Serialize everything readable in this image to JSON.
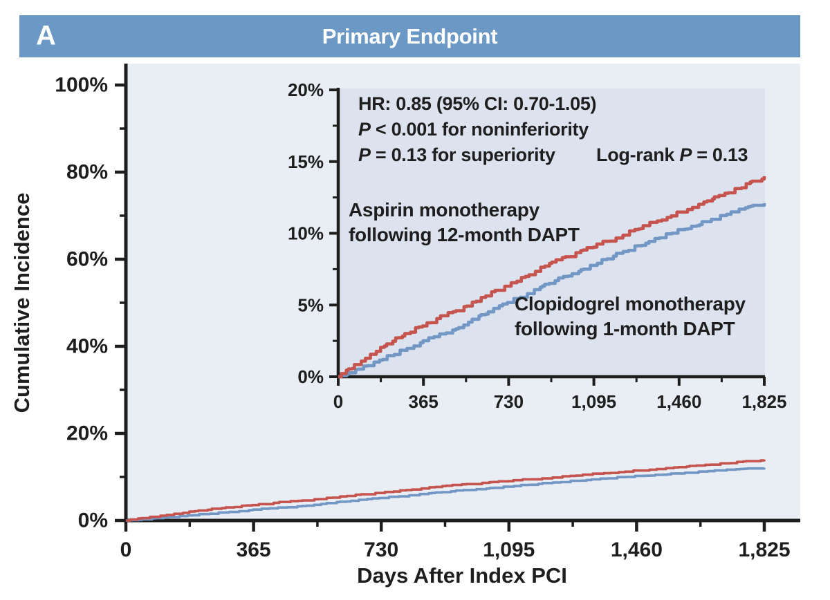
{
  "panel": {
    "label": "A",
    "title": "Primary Endpoint"
  },
  "colors": {
    "header_bg": "#6b98c5",
    "panel_text": "#ffffff",
    "plot_bg": "#e9edf4",
    "inset_bg": "#dde3ee",
    "aspirin_red": "#c5544e",
    "clopidogrel_blue": "#7297c4",
    "axis": "#1e1e1e",
    "text": "#1e1e1e"
  },
  "inset": {
    "stats": {
      "hr": "HR: 0.85 (95% CI: 0.70-1.05)",
      "p_symbol": "P",
      "noninferiority_rest": " < 0.001 for noninferiority",
      "superiority_rest": " = 0.13 for superiority",
      "logrank_prefix": "Log-rank ",
      "logrank_rest": " = 0.13"
    }
  },
  "chart_data": {
    "type": "line",
    "style": "kaplan-meier-step-curves",
    "title": "Primary Endpoint",
    "xlabel": "Days After Index PCI",
    "ylabel": "Cumulative Incidence",
    "grid": false,
    "main_axis": {
      "ylim_pct": [
        0,
        100
      ],
      "xlim_days": [
        0,
        1825
      ]
    },
    "inset_axis": {
      "ylim_pct": [
        0,
        20
      ],
      "xlim_days": [
        0,
        1825
      ]
    },
    "x_tick_days": [
      0,
      365,
      730,
      1095,
      1460,
      1825
    ],
    "x_tick_labels": [
      "0",
      "365",
      "730",
      "1,095",
      "1,460",
      "1,825"
    ],
    "main_y_tick_pcts": [
      0,
      20,
      40,
      60,
      80,
      100
    ],
    "main_y_tick_labels": [
      "0%",
      "20%",
      "40%",
      "60%",
      "80%",
      "100%"
    ],
    "inset_y_tick_pcts": [
      0,
      5,
      10,
      15,
      20
    ],
    "inset_y_tick_labels": [
      "0%",
      "5%",
      "10%",
      "15%",
      "20%"
    ],
    "x_days": [
      0,
      91,
      183,
      274,
      365,
      457,
      548,
      639,
      730,
      822,
      913,
      1004,
      1095,
      1187,
      1278,
      1370,
      1461,
      1552,
      1644,
      1735,
      1825
    ],
    "series": [
      {
        "name": "Aspirin monotherapy following 12-month DAPT",
        "label_lines": [
          "Aspirin monotherapy",
          "following 12-month DAPT"
        ],
        "color": "#c5544e",
        "values_pct": [
          0,
          1.0,
          2.0,
          2.9,
          3.6,
          4.3,
          4.9,
          5.7,
          6.4,
          7.2,
          8.0,
          8.5,
          9.1,
          9.7,
          10.3,
          10.9,
          11.5,
          12.1,
          12.7,
          13.3,
          13.9
        ]
      },
      {
        "name": "Clopidogrel monotherapy following 1-month DAPT",
        "label_lines": [
          "Clopidogrel monotherapy",
          "following 1-month DAPT"
        ],
        "color": "#7297c4",
        "values_pct": [
          0,
          0.6,
          1.2,
          1.9,
          2.5,
          3.1,
          3.7,
          4.5,
          5.2,
          5.9,
          6.6,
          7.2,
          7.9,
          8.5,
          9.1,
          9.7,
          10.2,
          10.7,
          11.2,
          11.7,
          12.1
        ]
      }
    ],
    "stats": {
      "hazard_ratio": "0.85",
      "ci_95": "0.70-1.05",
      "p_noninferiority": "< 0.001",
      "p_superiority": "0.13",
      "log_rank_p": "0.13"
    }
  }
}
